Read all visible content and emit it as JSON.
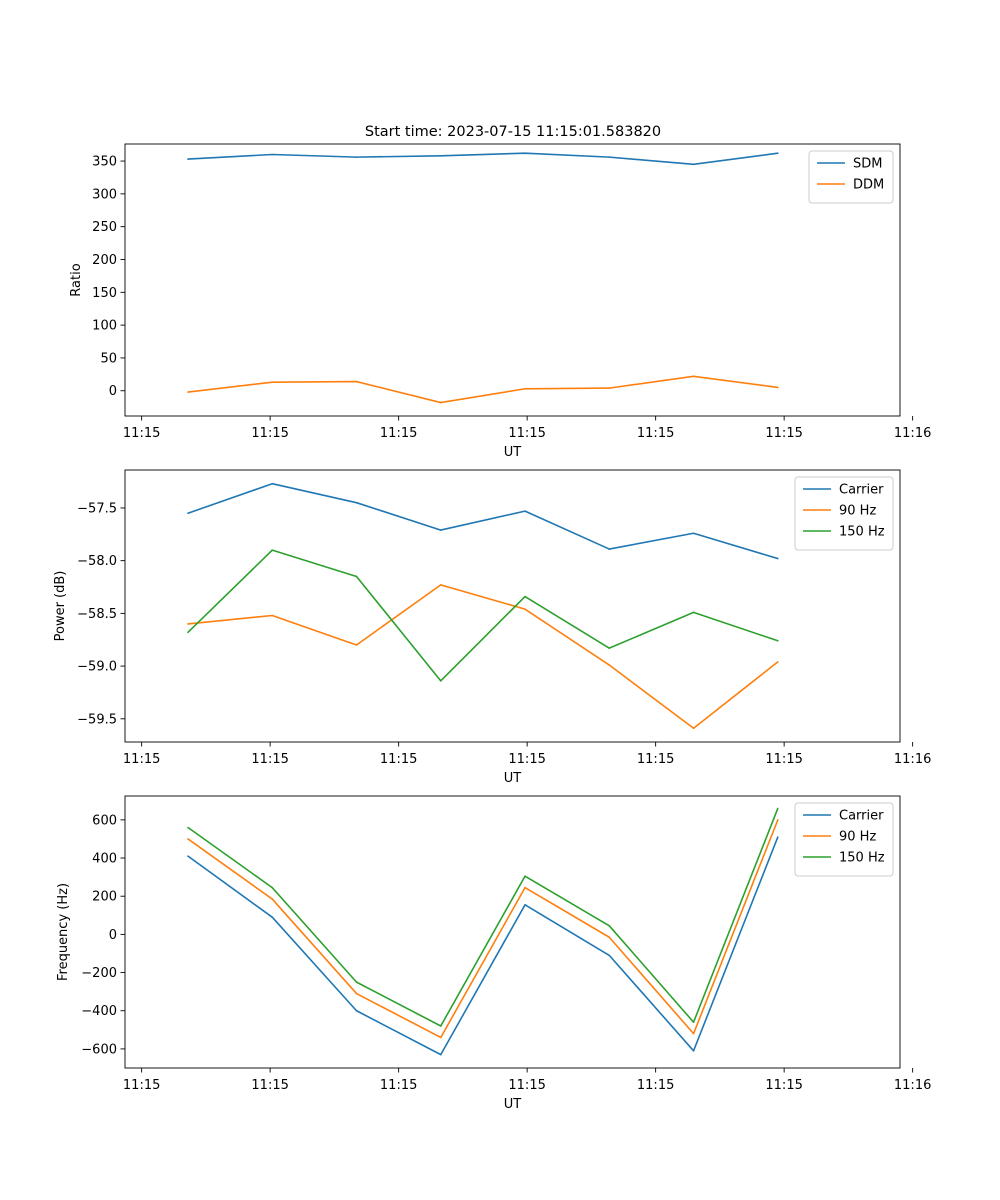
{
  "figure_title": "Start time: 2023-07-15 11:15:01.583820",
  "chart_data": [
    {
      "type": "line",
      "id": "ratio",
      "title": "Start time: 2023-07-15 11:15:01.583820",
      "xlabel": "UT",
      "ylabel": "Ratio",
      "x": [
        1,
        2,
        3,
        4,
        5,
        6,
        7,
        8
      ],
      "xlim": [
        0.2525,
        9.45
      ],
      "xticks": [
        {
          "value": 0.45,
          "label": "11:15"
        },
        {
          "value": 1.975,
          "label": "11:15"
        },
        {
          "value": 3.5,
          "label": "11:15"
        },
        {
          "value": 5.025,
          "label": "11:15"
        },
        {
          "value": 6.55,
          "label": "11:15"
        },
        {
          "value": 8.075,
          "label": "11:15"
        },
        {
          "value": 9.6,
          "label": "11:16"
        }
      ],
      "ylim": [
        -38.5,
        376
      ],
      "yticks": [
        0,
        50,
        100,
        150,
        200,
        250,
        300,
        350
      ],
      "ytick_labels": [
        "0",
        "50",
        "100",
        "150",
        "200",
        "250",
        "300",
        "350"
      ],
      "legend": "top-right",
      "series": [
        {
          "name": "SDM",
          "color": "#1f77b4",
          "values": [
            353,
            360,
            356,
            358,
            362,
            356,
            345,
            362
          ]
        },
        {
          "name": "DDM",
          "color": "#ff7f0e",
          "values": [
            -2,
            13,
            14,
            -18,
            3,
            4,
            22,
            5
          ]
        }
      ]
    },
    {
      "type": "line",
      "id": "power",
      "title": "",
      "xlabel": "UT",
      "ylabel": "Power (dB)",
      "x": [
        1,
        2,
        3,
        4,
        5,
        6,
        7,
        8
      ],
      "xlim": [
        0.2525,
        9.45
      ],
      "xticks": [
        {
          "value": 0.45,
          "label": "11:15"
        },
        {
          "value": 1.975,
          "label": "11:15"
        },
        {
          "value": 3.5,
          "label": "11:15"
        },
        {
          "value": 5.025,
          "label": "11:15"
        },
        {
          "value": 6.55,
          "label": "11:15"
        },
        {
          "value": 8.075,
          "label": "11:15"
        },
        {
          "value": 9.6,
          "label": "11:16"
        }
      ],
      "ylim": [
        -59.72,
        -57.14
      ],
      "yticks": [
        -57.5,
        -58.0,
        -58.5,
        -59.0,
        -59.5
      ],
      "ytick_labels": [
        "−57.5",
        "−58.0",
        "−58.5",
        "−59.0",
        "−59.5"
      ],
      "legend": "top-right",
      "series": [
        {
          "name": "Carrier",
          "color": "#1f77b4",
          "values": [
            -57.55,
            -57.27,
            -57.45,
            -57.71,
            -57.53,
            -57.89,
            -57.74,
            -57.98
          ]
        },
        {
          "name": "90 Hz",
          "color": "#ff7f0e",
          "values": [
            -58.6,
            -58.52,
            -58.8,
            -58.23,
            -58.46,
            -58.99,
            -59.59,
            -58.96
          ]
        },
        {
          "name": "150 Hz",
          "color": "#2ca02c",
          "values": [
            -58.68,
            -57.9,
            -58.15,
            -59.14,
            -58.34,
            -58.83,
            -58.49,
            -58.76
          ]
        }
      ]
    },
    {
      "type": "line",
      "id": "frequency",
      "title": "",
      "xlabel": "UT",
      "ylabel": "Frequency (Hz)",
      "x": [
        1,
        2,
        3,
        4,
        5,
        6,
        7,
        8
      ],
      "xlim": [
        0.2525,
        9.45
      ],
      "xticks": [
        {
          "value": 0.45,
          "label": "11:15"
        },
        {
          "value": 1.975,
          "label": "11:15"
        },
        {
          "value": 3.5,
          "label": "11:15"
        },
        {
          "value": 5.025,
          "label": "11:15"
        },
        {
          "value": 6.55,
          "label": "11:15"
        },
        {
          "value": 8.075,
          "label": "11:15"
        },
        {
          "value": 9.6,
          "label": "11:16"
        }
      ],
      "ylim": [
        -700,
        725
      ],
      "yticks": [
        -600,
        -400,
        -200,
        0,
        200,
        400,
        600
      ],
      "ytick_labels": [
        "−600",
        "−400",
        "−200",
        "0",
        "200",
        "400",
        "600"
      ],
      "legend": "top-right",
      "series": [
        {
          "name": "Carrier",
          "color": "#1f77b4",
          "values": [
            410,
            90,
            -400,
            -630,
            155,
            -110,
            -610,
            510
          ]
        },
        {
          "name": "90 Hz",
          "color": "#ff7f0e",
          "values": [
            500,
            185,
            -310,
            -540,
            245,
            -15,
            -520,
            600
          ]
        },
        {
          "name": "150 Hz",
          "color": "#2ca02c",
          "values": [
            560,
            245,
            -250,
            -480,
            305,
            45,
            -460,
            660
          ]
        }
      ]
    }
  ]
}
